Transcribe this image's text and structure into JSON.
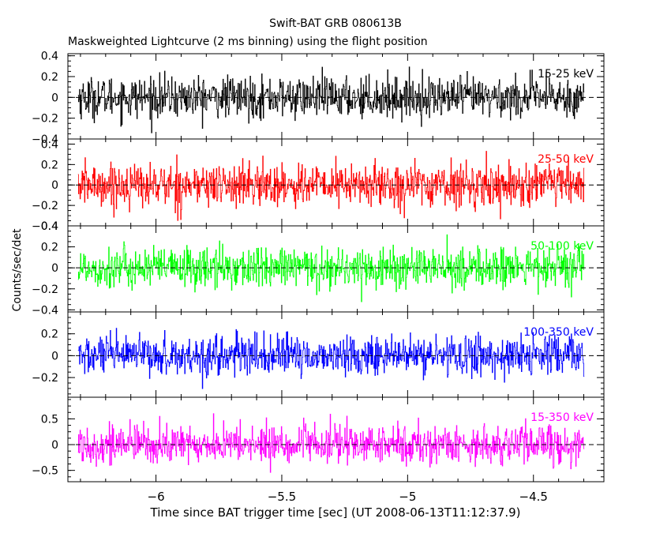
{
  "chart_data": {
    "type": "line",
    "title": "Swift-BAT GRB 080613B",
    "subtitle": "Maskweighted Lightcurve (2 ms binning) using the flight position",
    "xlabel": "Time since BAT trigger time [sec] (UT 2008-06-13T11:12:37.9)",
    "ylabel": "Counts/sec/det",
    "xlim": [
      -6.35,
      -4.22
    ],
    "x_range_data": [
      -6.31,
      -4.3
    ],
    "bin_width": 0.002,
    "xticks": [
      -6,
      -5.5,
      -5,
      -4.5
    ],
    "xtick_labels": [
      "−6",
      "−5.5",
      "−5",
      "−4.5"
    ],
    "zero_line": "dashed",
    "panels": [
      {
        "name": "15-25 keV",
        "color": "#000000",
        "ylim": [
          -0.4,
          0.42
        ],
        "yticks": [
          -0.4,
          -0.2,
          0,
          0.2,
          0.4
        ],
        "ytick_labels": [
          "−0.4",
          "−0.2",
          "0",
          "0.2",
          "0.4"
        ],
        "noise_amplitude": 0.13
      },
      {
        "name": "25-50 keV",
        "color": "#ff0000",
        "ylim": [
          -0.4,
          0.45
        ],
        "yticks": [
          -0.4,
          -0.2,
          0,
          0.2,
          0.4
        ],
        "ytick_labels": [
          "−0.4",
          "−0.2",
          "0",
          "0.2",
          "0.4"
        ],
        "noise_amplitude": 0.14
      },
      {
        "name": "50-100 keV",
        "color": "#00ff00",
        "ylim": [
          -0.42,
          0.4
        ],
        "yticks": [
          -0.4,
          -0.2,
          0,
          0.2,
          0.4
        ],
        "ytick_labels": [
          "−0.4",
          "−0.2",
          "0",
          "0.2",
          "0.4"
        ],
        "noise_amplitude": 0.13
      },
      {
        "name": "100-350 keV",
        "color": "#0000ff",
        "ylim": [
          -0.38,
          0.4
        ],
        "yticks": [
          -0.2,
          0,
          0.2
        ],
        "ytick_labels": [
          "−0.2",
          "0",
          "0.2"
        ],
        "noise_amplitude": 0.12
      },
      {
        "name": "15-350 keV",
        "color": "#ff00ff",
        "ylim": [
          -0.72,
          0.92
        ],
        "yticks": [
          -0.5,
          0,
          0.5
        ],
        "ytick_labels": [
          "−0.5",
          "0",
          "0.5"
        ],
        "noise_amplitude": 0.25
      }
    ]
  }
}
